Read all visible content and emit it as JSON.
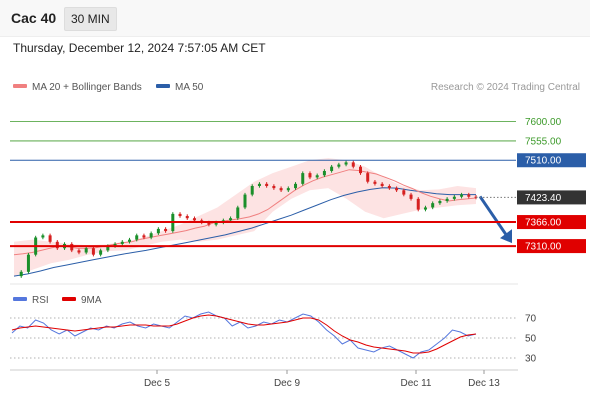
{
  "header": {
    "instrument": "Cac 40",
    "timeframe": "30 MIN"
  },
  "timestamp": "Thursday, December 12, 2024 7:57:05 AM CET",
  "legend": {
    "bollinger_label": "MA 20 + Bollinger Bands",
    "ma50_label": "MA 50",
    "research": "Research © 2024 Trading Central"
  },
  "rsi_legend": {
    "rsi_label": "RSI",
    "ma_label": "9MA"
  },
  "colors": {
    "bollinger": "#f08080",
    "band_fill": "#fde3e3",
    "ma50": "#2b5ea8",
    "candle_up": "#1a8f2a",
    "candle_down": "#d62020",
    "resistance": "#3c9a2a",
    "support": "#e00000",
    "pivot": "#2b5ea8",
    "rsi": "#5577dd",
    "rsi_ma": "#e00000",
    "current": "#333333"
  },
  "chart_data": {
    "type": "line",
    "title": "",
    "ylim": [
      7224,
      7662
    ],
    "x_ticks": [
      "Dec 5",
      "Dec 9",
      "Dec 11",
      "Dec 13"
    ],
    "levels": [
      {
        "label": "7600.00",
        "value": 7600,
        "kind": "resistance"
      },
      {
        "label": "7555.00",
        "value": 7555,
        "kind": "resistance"
      },
      {
        "label": "7510.00",
        "value": 7510,
        "kind": "pivot"
      },
      {
        "label": "7423.40",
        "value": 7423.4,
        "kind": "current"
      },
      {
        "label": "7366.00",
        "value": 7366,
        "kind": "support"
      },
      {
        "label": "7310.00",
        "value": 7310,
        "kind": "support"
      }
    ],
    "forecast": {
      "from": 7423.4,
      "to": 7310
    },
    "price_path": [
      7240,
      7250,
      7290,
      7330,
      7335,
      7320,
      7305,
      7315,
      7300,
      7295,
      7305,
      7290,
      7300,
      7310,
      7315,
      7320,
      7325,
      7335,
      7330,
      7340,
      7350,
      7345,
      7385,
      7380,
      7375,
      7370,
      7365,
      7360,
      7365,
      7370,
      7375,
      7400,
      7430,
      7450,
      7455,
      7450,
      7445,
      7440,
      7445,
      7455,
      7480,
      7470,
      7475,
      7485,
      7495,
      7500,
      7505,
      7495,
      7480,
      7460,
      7455,
      7450,
      7445,
      7440,
      7430,
      7420,
      7395,
      7400,
      7410,
      7415,
      7420,
      7425,
      7430,
      7425,
      7423
    ],
    "ma20_path": [
      7290,
      7292,
      7295,
      7300,
      7305,
      7310,
      7308,
      7305,
      7305,
      7306,
      7310,
      7314,
      7318,
      7320,
      7326,
      7330,
      7334,
      7338,
      7342,
      7346,
      7352,
      7356,
      7364,
      7368,
      7371,
      7374,
      7378,
      7385,
      7395,
      7410,
      7425,
      7440,
      7452,
      7462,
      7470,
      7476,
      7482,
      7488,
      7486,
      7482,
      7478,
      7470,
      7462,
      7452,
      7444,
      7434,
      7426,
      7420,
      7415,
      7418,
      7420,
      7422
    ],
    "ma50_path": [
      7240,
      7245,
      7252,
      7260,
      7266,
      7272,
      7278,
      7284,
      7290,
      7295,
      7300,
      7306,
      7312,
      7318,
      7324,
      7330,
      7336,
      7344,
      7352,
      7362,
      7372,
      7382,
      7394,
      7406,
      7418,
      7428,
      7436,
      7442,
      7446,
      7445,
      7440,
      7436,
      7432,
      7430,
      7430,
      7430
    ],
    "bb_upper": [
      7320,
      7325,
      7320,
      7315,
      7312,
      7314,
      7320,
      7330,
      7345,
      7360,
      7380,
      7400,
      7430,
      7460,
      7480,
      7495,
      7510,
      7515,
      7510,
      7495,
      7470,
      7450,
      7440,
      7442,
      7450,
      7445
    ],
    "bb_lower": [
      7240,
      7255,
      7270,
      7278,
      7290,
      7298,
      7300,
      7310,
      7320,
      7325,
      7320,
      7325,
      7335,
      7345,
      7390,
      7420,
      7440,
      7445,
      7420,
      7390,
      7375,
      7385,
      7395,
      7400,
      7405,
      7408
    ],
    "rsi": {
      "ticks": [
        "70",
        "50",
        "30"
      ],
      "ylim": [
        22,
        82
      ],
      "values": [
        55,
        62,
        60,
        68,
        65,
        58,
        54,
        58,
        52,
        56,
        60,
        58,
        62,
        60,
        64,
        66,
        62,
        60,
        64,
        62,
        60,
        66,
        72,
        70,
        74,
        76,
        72,
        70,
        62,
        66,
        60,
        62,
        66,
        64,
        68,
        66,
        70,
        74,
        72,
        66,
        58,
        52,
        44,
        48,
        40,
        38,
        36,
        40,
        42,
        38,
        34,
        30,
        36,
        38,
        44,
        50,
        58,
        56,
        52,
        54
      ],
      "ma_values": [
        58,
        60,
        61,
        62,
        61,
        60,
        59,
        58,
        57,
        58,
        59,
        60,
        61,
        61,
        62,
        63,
        63,
        63,
        62,
        62,
        62,
        64,
        67,
        70,
        72,
        73,
        72,
        70,
        68,
        66,
        64,
        63,
        63,
        64,
        65,
        66,
        68,
        70,
        70,
        68,
        63,
        57,
        52,
        48,
        46,
        43,
        41,
        40,
        39,
        38,
        37,
        35,
        35,
        36,
        39,
        43,
        47,
        51,
        53,
        54
      ]
    }
  }
}
